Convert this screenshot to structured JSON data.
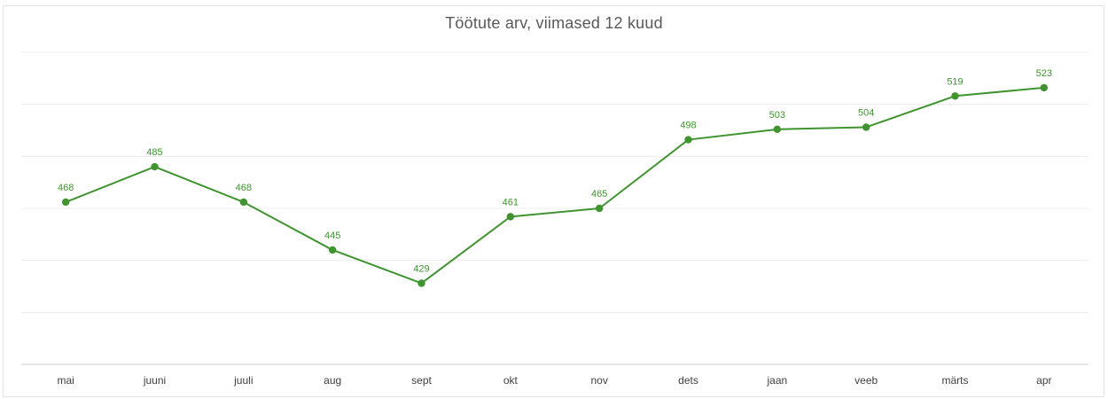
{
  "colors": {
    "series": "#3f9430",
    "grid": "#ececec",
    "axis": "#c8cdd6"
  },
  "chart_data": {
    "type": "line",
    "title": "Töötute arv, viimased 12 kuud",
    "categories": [
      "mai",
      "juuni",
      "juuli",
      "aug",
      "sept",
      "okt",
      "nov",
      "dets",
      "jaan",
      "veeb",
      "märts",
      "apr"
    ],
    "values": [
      468,
      485,
      468,
      445,
      429,
      461,
      465,
      498,
      503,
      504,
      519,
      523
    ],
    "ylim": [
      390,
      540
    ],
    "grid": true,
    "legend": "none",
    "data_labels": true
  }
}
